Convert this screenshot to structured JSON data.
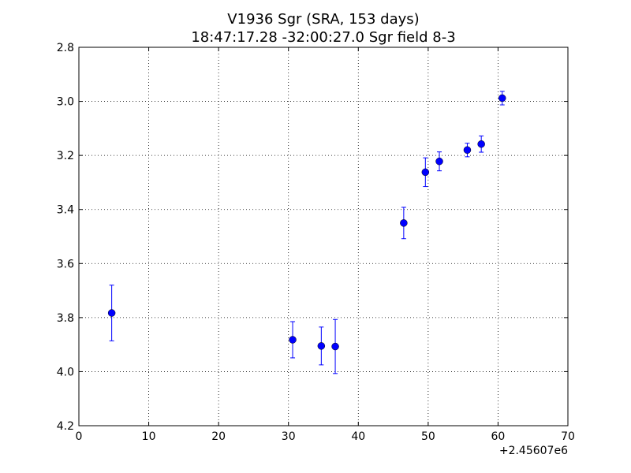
{
  "chart_data": {
    "type": "scatter",
    "title": "V1936 Sgr  (SRA, 153 days)",
    "subtitle": "18:47:17.28 -32:00:27.0 Sgr field 8-3",
    "xlabel": "",
    "ylabel": "",
    "x_offset_label": "+2.45607e6",
    "xlim": [
      0,
      70
    ],
    "ylim": [
      4.2,
      2.8
    ],
    "y_inverted": true,
    "x_ticks": [
      0,
      10,
      20,
      30,
      40,
      50,
      60,
      70
    ],
    "x_tick_labels": [
      "0",
      "10",
      "20",
      "30",
      "40",
      "50",
      "60",
      "70"
    ],
    "y_ticks": [
      2.8,
      3.0,
      3.2,
      3.4,
      3.6,
      3.8,
      4.0,
      4.2
    ],
    "y_tick_labels": [
      "2.8",
      "3.0",
      "3.2",
      "3.4",
      "3.6",
      "3.8",
      "4.0",
      "4.2"
    ],
    "grid": true,
    "series": [
      {
        "color": "#0000ff",
        "marker": "circle",
        "points": [
          {
            "x": 4.7,
            "y": 3.783,
            "err": 0.103
          },
          {
            "x": 30.6,
            "y": 3.882,
            "err": 0.067
          },
          {
            "x": 34.7,
            "y": 3.905,
            "err": 0.07
          },
          {
            "x": 36.7,
            "y": 3.907,
            "err": 0.1
          },
          {
            "x": 46.5,
            "y": 3.45,
            "err": 0.058
          },
          {
            "x": 49.6,
            "y": 3.262,
            "err": 0.053
          },
          {
            "x": 51.6,
            "y": 3.222,
            "err": 0.035
          },
          {
            "x": 55.6,
            "y": 3.18,
            "err": 0.025
          },
          {
            "x": 57.6,
            "y": 3.158,
            "err": 0.03
          },
          {
            "x": 60.6,
            "y": 2.988,
            "err": 0.025
          }
        ]
      }
    ]
  }
}
